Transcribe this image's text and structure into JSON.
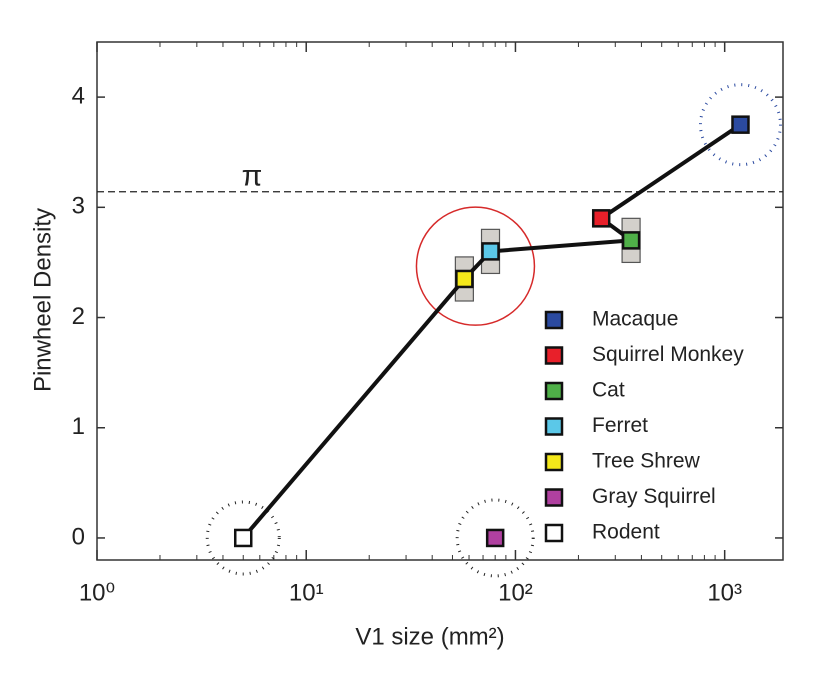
{
  "chart_data": {
    "type": "scatter",
    "xlabel": "V1 size (mm²)",
    "ylabel": "Pinwheel Density",
    "xscale": "log",
    "xlim": [
      1,
      1900
    ],
    "ylim": [
      -0.2,
      4.5
    ],
    "xticks": [
      {
        "value": 1,
        "label": "10⁰"
      },
      {
        "value": 10,
        "label": "10¹"
      },
      {
        "value": 100,
        "label": "10²"
      },
      {
        "value": 1000,
        "label": "10³"
      }
    ],
    "yticks": [
      0,
      1,
      2,
      3,
      4
    ],
    "minor_ticks": true,
    "reference_line": {
      "value": 3.14159,
      "label": "π"
    },
    "legend": "lower right",
    "connected_series": [
      6,
      4,
      3,
      2,
      1,
      0
    ],
    "series": [
      {
        "name": "Macaque",
        "color": "#2b4aa0",
        "x": [
          1190
        ],
        "values": [
          3.75
        ]
      },
      {
        "name": "Squirrel Monkey",
        "color": "#e8202a",
        "x": [
          257
        ],
        "values": [
          2.9
        ]
      },
      {
        "name": "Cat",
        "color": "#4fb048",
        "x": [
          357
        ],
        "values": [
          2.7
        ],
        "error": [
          0.2
        ]
      },
      {
        "name": "Ferret",
        "color": "#5bc8e8",
        "x": [
          76
        ],
        "values": [
          2.6
        ],
        "error": [
          0.2
        ]
      },
      {
        "name": "Tree Shrew",
        "color": "#f4e81a",
        "x": [
          57
        ],
        "values": [
          2.35
        ],
        "error": [
          0.2
        ]
      },
      {
        "name": "Gray Squirrel",
        "color": "#b040a0",
        "x": [
          80
        ],
        "values": [
          0
        ]
      },
      {
        "name": "Rodent",
        "color": "#ffffff",
        "x": [
          5
        ],
        "values": [
          0
        ]
      }
    ]
  }
}
